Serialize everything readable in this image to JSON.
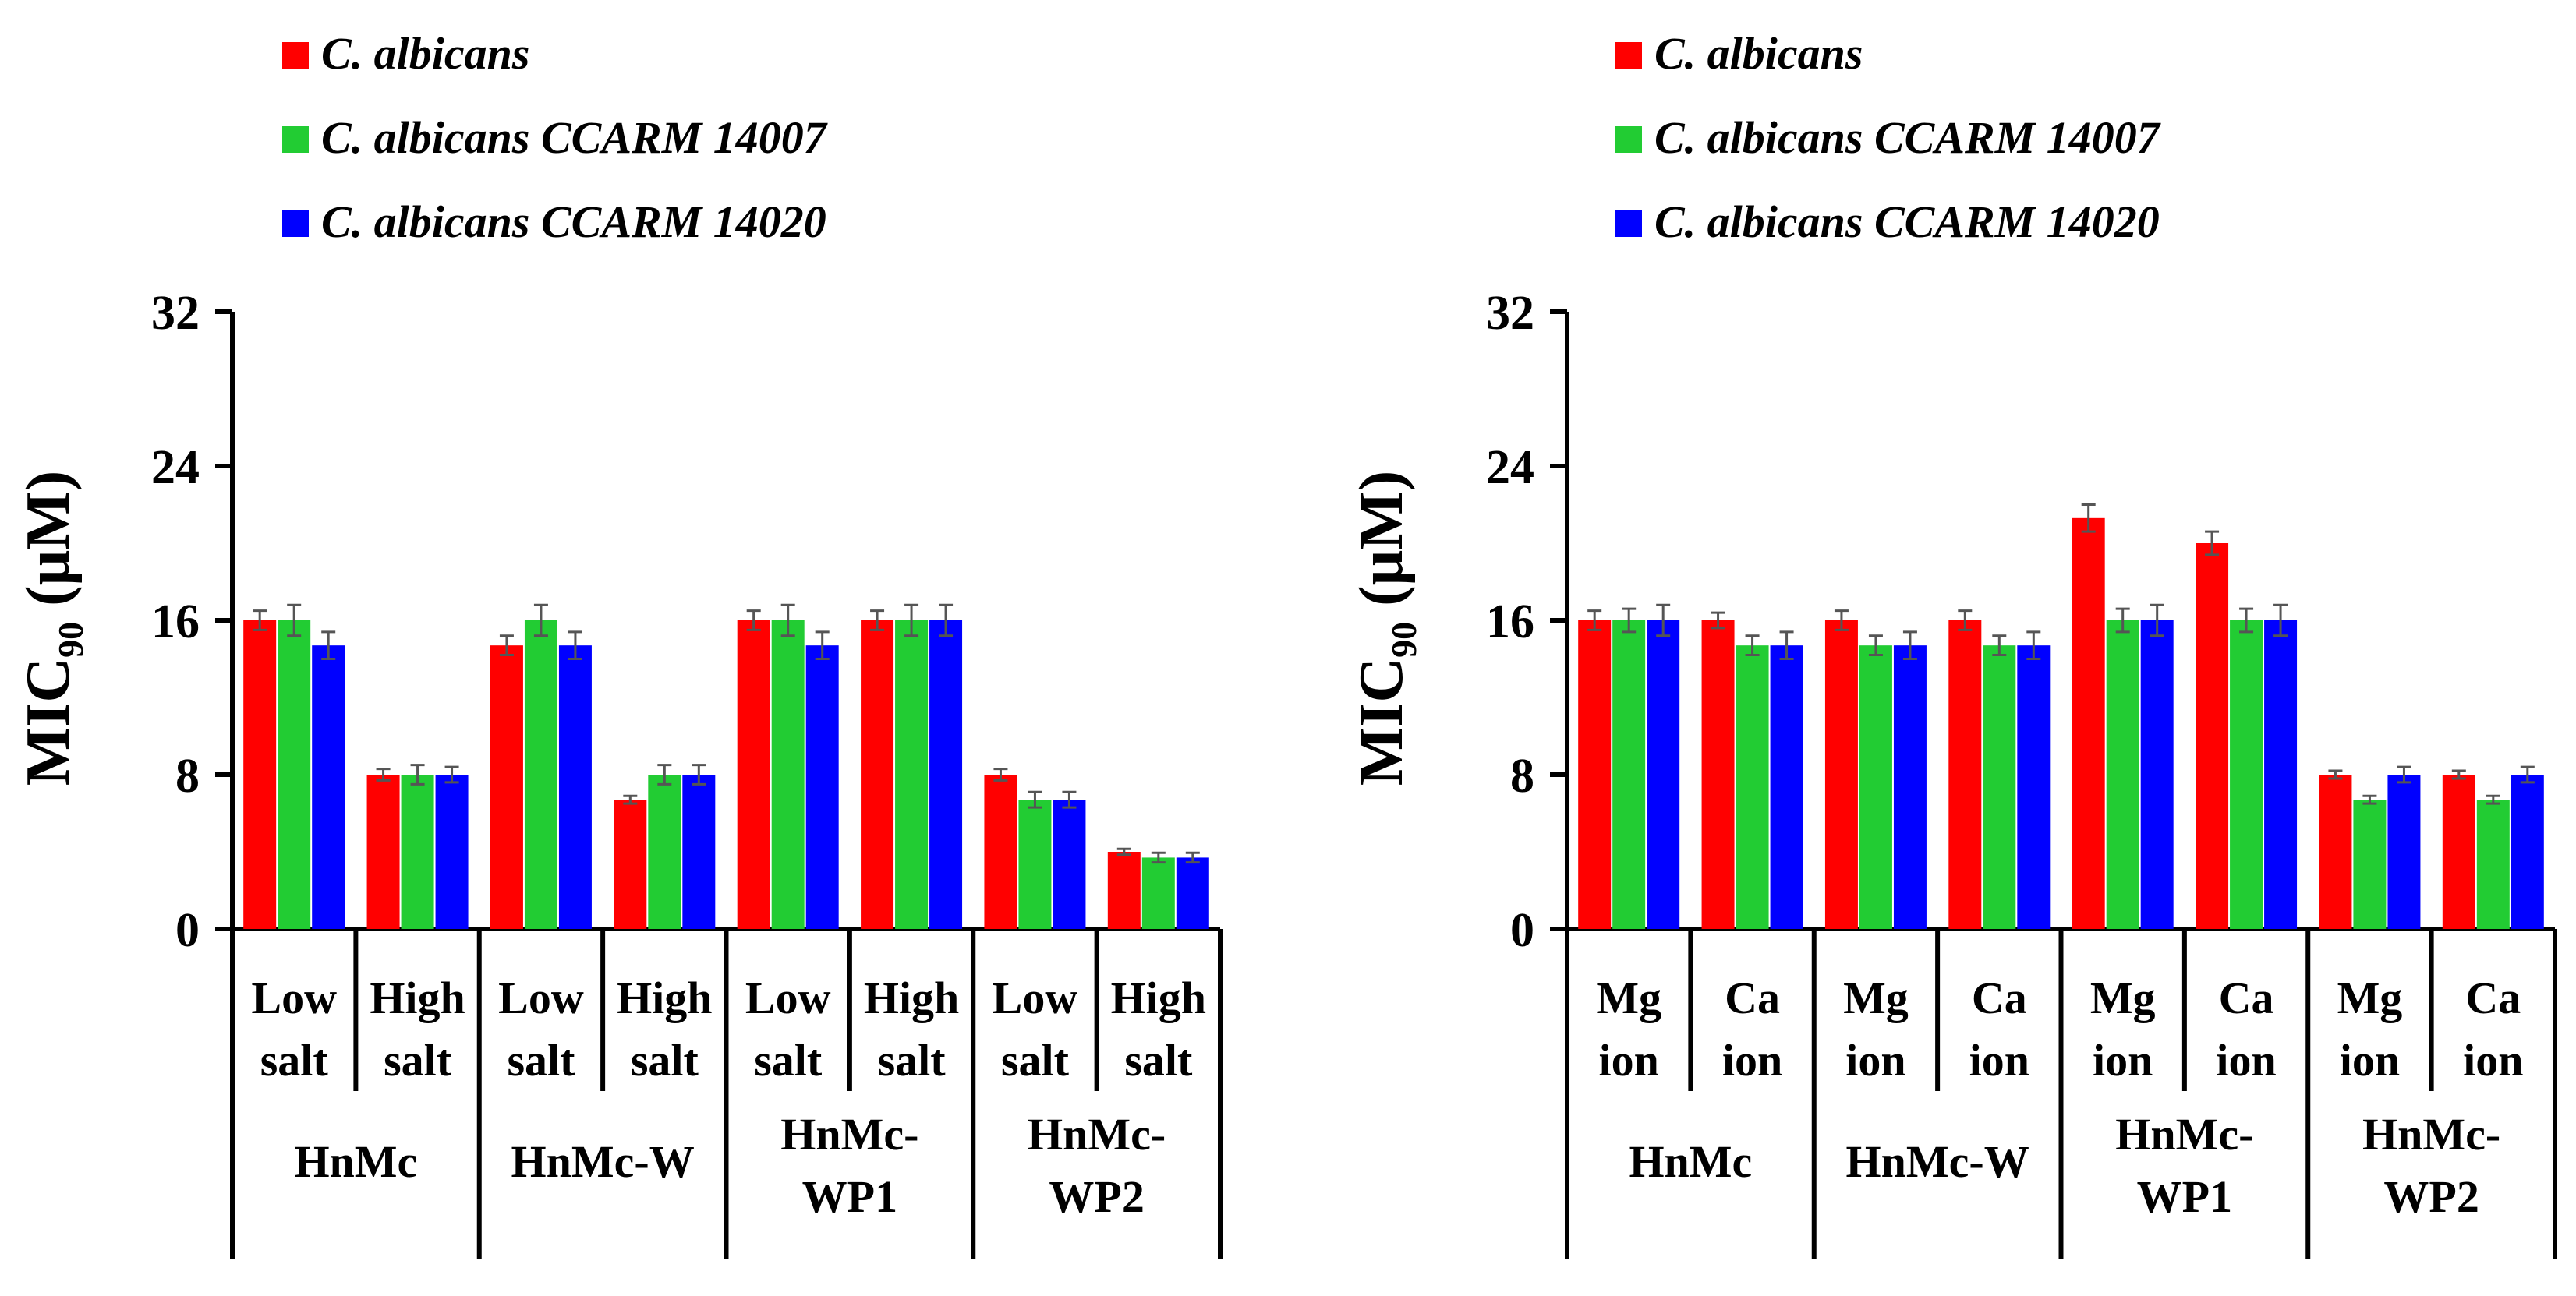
{
  "chart_data": [
    {
      "type": "bar",
      "ylabel": "MIC",
      "ylabel_subscript": "90",
      "ylabel_unit": " (μM)",
      "ylim": [
        0,
        32
      ],
      "yticks": [
        "0",
        "8",
        "16",
        "24",
        "32"
      ],
      "legend": [
        "C. albicans",
        "C. albicans CCARM 14007",
        "C. albicans CCARM 14020"
      ],
      "colors": [
        "#ff0000",
        "#22cc33",
        "#0000ff"
      ],
      "categories": [
        [
          "Low",
          "salt"
        ],
        [
          "High",
          "salt"
        ],
        [
          "Low",
          "salt"
        ],
        [
          "High",
          "salt"
        ],
        [
          "Low",
          "salt"
        ],
        [
          "High",
          "salt"
        ],
        [
          "Low",
          "salt"
        ],
        [
          "High",
          "salt"
        ]
      ],
      "groups": [
        [
          "HnMc"
        ],
        [
          "HnMc-W"
        ],
        [
          "HnMc-",
          "WP1"
        ],
        [
          "HnMc-",
          "WP2"
        ]
      ],
      "series": [
        {
          "name": "C. albicans",
          "values": [
            16,
            8,
            14.7,
            6.7,
            16,
            16,
            8,
            4
          ],
          "errors": [
            0.5,
            0.3,
            0.5,
            0.2,
            0.5,
            0.5,
            0.3,
            0.15
          ]
        },
        {
          "name": "C. albicans CCARM 14007",
          "values": [
            16,
            8,
            16,
            8,
            16,
            16,
            6.7,
            3.7
          ],
          "errors": [
            0.8,
            0.5,
            0.8,
            0.5,
            0.8,
            0.8,
            0.4,
            0.25
          ]
        },
        {
          "name": "C. albicans CCARM 14020",
          "values": [
            14.7,
            8,
            14.7,
            8,
            14.7,
            16,
            6.7,
            3.7
          ],
          "errors": [
            0.7,
            0.4,
            0.7,
            0.5,
            0.7,
            0.8,
            0.4,
            0.25
          ]
        }
      ]
    },
    {
      "type": "bar",
      "ylabel": "MIC",
      "ylabel_subscript": "90",
      "ylabel_unit": " (μM)",
      "ylim": [
        0,
        32
      ],
      "yticks": [
        "0",
        "8",
        "16",
        "24",
        "32"
      ],
      "legend": [
        "C. albicans",
        "C. albicans CCARM 14007",
        "C. albicans CCARM 14020"
      ],
      "colors": [
        "#ff0000",
        "#22cc33",
        "#0000ff"
      ],
      "categories": [
        [
          "Mg",
          "ion"
        ],
        [
          "Ca",
          "ion"
        ],
        [
          "Mg",
          "ion"
        ],
        [
          "Ca",
          "ion"
        ],
        [
          "Mg",
          "ion"
        ],
        [
          "Ca",
          "ion"
        ],
        [
          "Mg",
          "ion"
        ],
        [
          "Ca",
          "ion"
        ]
      ],
      "groups": [
        [
          "HnMc"
        ],
        [
          "HnMc-W"
        ],
        [
          "HnMc-",
          "WP1"
        ],
        [
          "HnMc-",
          "WP2"
        ]
      ],
      "series": [
        {
          "name": "C. albicans",
          "values": [
            16,
            16,
            16,
            16,
            21.3,
            20,
            8,
            8
          ],
          "errors": [
            0.5,
            0.4,
            0.5,
            0.5,
            0.7,
            0.6,
            0.2,
            0.2
          ]
        },
        {
          "name": "C. albicans CCARM 14007",
          "values": [
            16,
            14.7,
            14.7,
            14.7,
            16,
            16,
            6.7,
            6.7
          ],
          "errors": [
            0.6,
            0.5,
            0.5,
            0.5,
            0.6,
            0.6,
            0.2,
            0.2
          ]
        },
        {
          "name": "C. albicans CCARM 14020",
          "values": [
            16,
            14.7,
            14.7,
            14.7,
            16,
            16,
            8,
            8
          ],
          "errors": [
            0.8,
            0.7,
            0.7,
            0.7,
            0.8,
            0.8,
            0.4,
            0.4
          ]
        }
      ]
    }
  ]
}
